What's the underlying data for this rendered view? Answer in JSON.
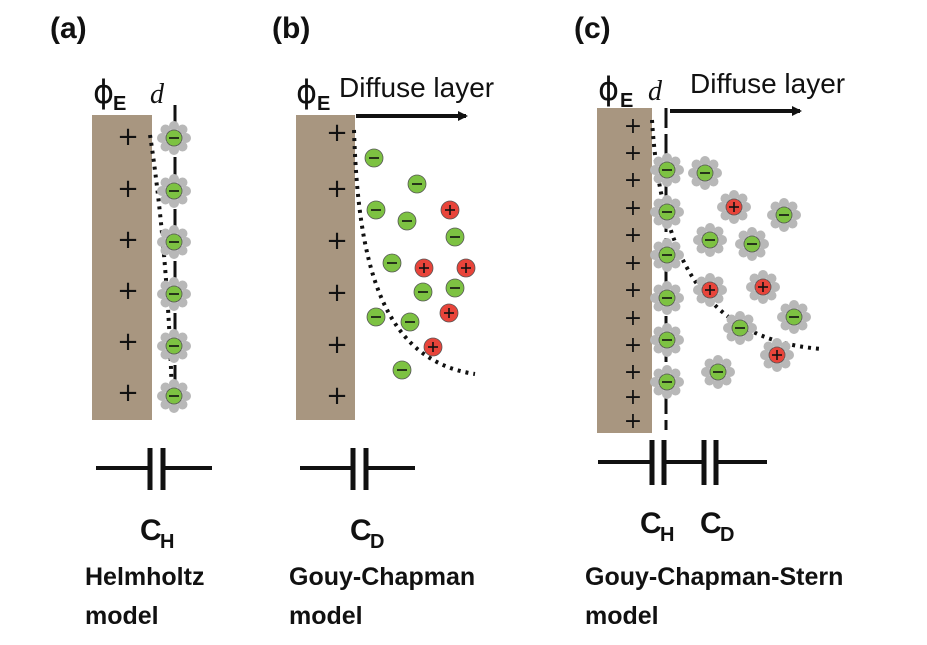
{
  "panels": [
    {
      "label": "(a)",
      "potential": {
        "symbol": "ϕ",
        "subscript": "E"
      },
      "distance_label": "d",
      "diffuse_label": "",
      "capacitors": [
        {
          "symbol": "C",
          "subscript": "H"
        }
      ],
      "model_line1": "Helmholtz",
      "model_line2": "model",
      "ion_solvated_anion": "green",
      "plus_count": 6
    },
    {
      "label": "(b)",
      "potential": {
        "symbol": "ϕ",
        "subscript": "E"
      },
      "distance_label": "",
      "diffuse_label": "Diffuse layer",
      "capacitors": [
        {
          "symbol": "C",
          "subscript": "D"
        }
      ],
      "model_line1": "Gouy-Chapman",
      "model_line2": "model",
      "plus_count": 6
    },
    {
      "label": "(c)",
      "potential": {
        "symbol": "ϕ",
        "subscript": "E"
      },
      "distance_label": "d",
      "diffuse_label": "Diffuse layer",
      "capacitors": [
        {
          "symbol": "C",
          "subscript": "H"
        },
        {
          "symbol": "C",
          "subscript": "D"
        }
      ],
      "model_line1": "Gouy-Chapman-Stern",
      "model_line2": "model",
      "plus_count": 12
    }
  ],
  "ion_signs": {
    "anion": "−",
    "cation": "+"
  },
  "colors": {
    "electrode": "#a89680",
    "anion": "#7dc242",
    "cation": "#e8443a",
    "solvent_shell": "#b8b8b8",
    "ink": "#111111"
  }
}
